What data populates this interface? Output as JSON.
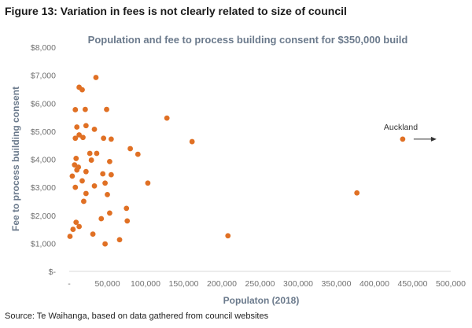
{
  "figure_title": "Figure 13: Variation in fees is not clearly related to size of council",
  "source": "Source: Te Waihanga, based on data gathered from council websites",
  "colors": {
    "point": "#e07024",
    "title": "#6b7a8c",
    "tick": "#707070"
  },
  "chart_data": {
    "type": "scatter",
    "title": "Population and fee to process building consent for $350,000 build",
    "xlabel": "Populaton (2018)",
    "ylabel": "Fee to process building consent",
    "xlim": [
      0,
      500000
    ],
    "ylim": [
      0,
      8000
    ],
    "x_ticks": [
      "-",
      "50,000",
      "100,000",
      "150,000",
      "200,000",
      "250,000",
      "300,000",
      "350,000",
      "400,000",
      "450,000",
      "500,000"
    ],
    "y_ticks": [
      "$-",
      "$1,000",
      "$2,000",
      "$3,000",
      "$4,000",
      "$5,000",
      "$6,000",
      "$7,000",
      "$8,000"
    ],
    "grid": false,
    "annotation": {
      "text": "Auckland",
      "x": 437000,
      "y": 4720
    },
    "points": [
      {
        "x": 1000,
        "y": 1250
      },
      {
        "x": 5000,
        "y": 1500
      },
      {
        "x": 9000,
        "y": 1750
      },
      {
        "x": 13000,
        "y": 1600
      },
      {
        "x": 19000,
        "y": 2500
      },
      {
        "x": 22000,
        "y": 2780
      },
      {
        "x": 31000,
        "y": 1330
      },
      {
        "x": 42000,
        "y": 1880
      },
      {
        "x": 47000,
        "y": 980
      },
      {
        "x": 53000,
        "y": 2080
      },
      {
        "x": 66000,
        "y": 1130
      },
      {
        "x": 75000,
        "y": 2250
      },
      {
        "x": 76000,
        "y": 1800
      },
      {
        "x": 4000,
        "y": 3400
      },
      {
        "x": 7000,
        "y": 3800
      },
      {
        "x": 8000,
        "y": 3000
      },
      {
        "x": 10000,
        "y": 3620
      },
      {
        "x": 12000,
        "y": 3720
      },
      {
        "x": 9000,
        "y": 4030
      },
      {
        "x": 17000,
        "y": 3230
      },
      {
        "x": 22000,
        "y": 3560
      },
      {
        "x": 27000,
        "y": 4210
      },
      {
        "x": 29000,
        "y": 3970
      },
      {
        "x": 33000,
        "y": 3050
      },
      {
        "x": 36000,
        "y": 4210
      },
      {
        "x": 44000,
        "y": 3480
      },
      {
        "x": 47000,
        "y": 3150
      },
      {
        "x": 50000,
        "y": 2740
      },
      {
        "x": 53000,
        "y": 3920
      },
      {
        "x": 55000,
        "y": 3450
      },
      {
        "x": 8000,
        "y": 4750
      },
      {
        "x": 10000,
        "y": 5150
      },
      {
        "x": 13000,
        "y": 4870
      },
      {
        "x": 18000,
        "y": 4780
      },
      {
        "x": 22000,
        "y": 5200
      },
      {
        "x": 33000,
        "y": 5070
      },
      {
        "x": 45000,
        "y": 4750
      },
      {
        "x": 55000,
        "y": 4720
      },
      {
        "x": 8000,
        "y": 5770
      },
      {
        "x": 21000,
        "y": 5780
      },
      {
        "x": 49000,
        "y": 5780
      },
      {
        "x": 13000,
        "y": 6570
      },
      {
        "x": 17000,
        "y": 6480
      },
      {
        "x": 35000,
        "y": 6920
      },
      {
        "x": 80000,
        "y": 4380
      },
      {
        "x": 90000,
        "y": 4180
      },
      {
        "x": 103000,
        "y": 3150
      },
      {
        "x": 128000,
        "y": 5470
      },
      {
        "x": 161000,
        "y": 4630
      },
      {
        "x": 208000,
        "y": 1270
      },
      {
        "x": 377000,
        "y": 2800
      },
      {
        "x": 437000,
        "y": 4720
      }
    ]
  }
}
